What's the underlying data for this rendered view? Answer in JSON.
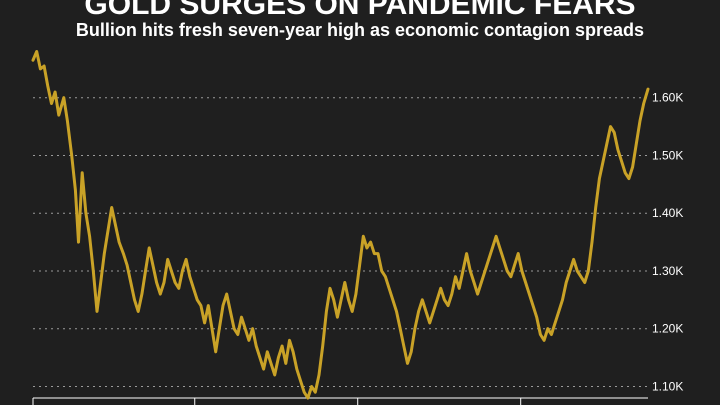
{
  "chart_data": {
    "type": "line",
    "title": "GOLD SURGES ON PANDEMIC FEARS",
    "subtitle": "Bullion hits fresh seven-year high as economic contagion spreads",
    "xlabel": "",
    "ylabel": "",
    "ylim": [
      1080,
      1700
    ],
    "yticks": [
      1100,
      1200,
      1300,
      1400,
      1500,
      1600
    ],
    "ytick_labels": [
      "1.10K",
      "1.20K",
      "1.30K",
      "1.40K",
      "1.50K",
      "1.60K"
    ],
    "grid": "horizontal-dotted",
    "x_range": [
      0,
      100
    ],
    "x_ticks": [
      0,
      26.3,
      52.8,
      79.3
    ],
    "series": [
      {
        "color": "#c9a227",
        "points": [
          [
            0.0,
            1665
          ],
          [
            0.6,
            1680
          ],
          [
            1.2,
            1650
          ],
          [
            1.8,
            1655
          ],
          [
            2.4,
            1620
          ],
          [
            3.0,
            1590
          ],
          [
            3.6,
            1610
          ],
          [
            4.2,
            1570
          ],
          [
            5.0,
            1600
          ],
          [
            5.6,
            1560
          ],
          [
            6.3,
            1500
          ],
          [
            6.9,
            1440
          ],
          [
            7.4,
            1350
          ],
          [
            8.0,
            1470
          ],
          [
            8.6,
            1400
          ],
          [
            9.2,
            1360
          ],
          [
            9.8,
            1300
          ],
          [
            10.4,
            1230
          ],
          [
            11.0,
            1280
          ],
          [
            11.6,
            1330
          ],
          [
            12.2,
            1370
          ],
          [
            12.8,
            1410
          ],
          [
            13.4,
            1380
          ],
          [
            14.0,
            1350
          ],
          [
            14.7,
            1330
          ],
          [
            15.3,
            1310
          ],
          [
            15.9,
            1280
          ],
          [
            16.5,
            1250
          ],
          [
            17.1,
            1230
          ],
          [
            17.7,
            1260
          ],
          [
            18.3,
            1300
          ],
          [
            18.9,
            1340
          ],
          [
            19.5,
            1310
          ],
          [
            20.1,
            1280
          ],
          [
            20.7,
            1260
          ],
          [
            21.3,
            1280
          ],
          [
            21.9,
            1320
          ],
          [
            22.5,
            1300
          ],
          [
            23.1,
            1280
          ],
          [
            23.7,
            1270
          ],
          [
            24.3,
            1300
          ],
          [
            24.9,
            1320
          ],
          [
            25.5,
            1290
          ],
          [
            26.1,
            1270
          ],
          [
            26.7,
            1250
          ],
          [
            27.3,
            1240
          ],
          [
            27.9,
            1210
          ],
          [
            28.5,
            1240
          ],
          [
            29.1,
            1200
          ],
          [
            29.7,
            1160
          ],
          [
            30.3,
            1200
          ],
          [
            30.9,
            1240
          ],
          [
            31.5,
            1260
          ],
          [
            32.1,
            1230
          ],
          [
            32.7,
            1200
          ],
          [
            33.3,
            1190
          ],
          [
            33.9,
            1220
          ],
          [
            34.5,
            1200
          ],
          [
            35.1,
            1180
          ],
          [
            35.7,
            1200
          ],
          [
            36.3,
            1170
          ],
          [
            36.9,
            1150
          ],
          [
            37.5,
            1130
          ],
          [
            38.1,
            1160
          ],
          [
            38.7,
            1140
          ],
          [
            39.3,
            1120
          ],
          [
            39.9,
            1150
          ],
          [
            40.5,
            1170
          ],
          [
            41.1,
            1140
          ],
          [
            41.7,
            1180
          ],
          [
            42.3,
            1160
          ],
          [
            42.9,
            1130
          ],
          [
            43.5,
            1110
          ],
          [
            44.1,
            1090
          ],
          [
            44.7,
            1080
          ],
          [
            45.3,
            1100
          ],
          [
            45.9,
            1090
          ],
          [
            46.5,
            1120
          ],
          [
            47.1,
            1170
          ],
          [
            47.7,
            1230
          ],
          [
            48.3,
            1270
          ],
          [
            48.9,
            1250
          ],
          [
            49.5,
            1220
          ],
          [
            50.1,
            1250
          ],
          [
            50.7,
            1280
          ],
          [
            51.3,
            1250
          ],
          [
            51.9,
            1230
          ],
          [
            52.5,
            1260
          ],
          [
            53.1,
            1310
          ],
          [
            53.7,
            1360
          ],
          [
            54.3,
            1340
          ],
          [
            54.9,
            1350
          ],
          [
            55.5,
            1330
          ],
          [
            56.1,
            1330
          ],
          [
            56.7,
            1300
          ],
          [
            57.3,
            1290
          ],
          [
            57.9,
            1270
          ],
          [
            58.5,
            1250
          ],
          [
            59.1,
            1230
          ],
          [
            59.7,
            1200
          ],
          [
            60.3,
            1170
          ],
          [
            60.9,
            1140
          ],
          [
            61.5,
            1160
          ],
          [
            62.1,
            1200
          ],
          [
            62.7,
            1230
          ],
          [
            63.3,
            1250
          ],
          [
            63.9,
            1230
          ],
          [
            64.5,
            1210
          ],
          [
            65.1,
            1230
          ],
          [
            65.7,
            1250
          ],
          [
            66.3,
            1270
          ],
          [
            66.9,
            1250
          ],
          [
            67.5,
            1240
          ],
          [
            68.1,
            1260
          ],
          [
            68.7,
            1290
          ],
          [
            69.3,
            1270
          ],
          [
            69.9,
            1300
          ],
          [
            70.5,
            1330
          ],
          [
            71.1,
            1300
          ],
          [
            71.7,
            1280
          ],
          [
            72.3,
            1260
          ],
          [
            72.9,
            1280
          ],
          [
            73.5,
            1300
          ],
          [
            74.1,
            1320
          ],
          [
            74.7,
            1340
          ],
          [
            75.3,
            1360
          ],
          [
            75.9,
            1340
          ],
          [
            76.5,
            1320
          ],
          [
            77.1,
            1300
          ],
          [
            77.7,
            1290
          ],
          [
            78.3,
            1310
          ],
          [
            78.9,
            1330
          ],
          [
            79.5,
            1300
          ],
          [
            80.1,
            1280
          ],
          [
            80.7,
            1260
          ],
          [
            81.3,
            1240
          ],
          [
            81.9,
            1220
          ],
          [
            82.5,
            1190
          ],
          [
            83.1,
            1180
          ],
          [
            83.7,
            1200
          ],
          [
            84.3,
            1190
          ],
          [
            84.9,
            1210
          ],
          [
            85.5,
            1230
          ],
          [
            86.1,
            1250
          ],
          [
            86.7,
            1280
          ],
          [
            87.3,
            1300
          ],
          [
            87.9,
            1320
          ],
          [
            88.5,
            1300
          ],
          [
            89.1,
            1290
          ],
          [
            89.7,
            1280
          ],
          [
            90.3,
            1300
          ],
          [
            90.9,
            1350
          ],
          [
            91.5,
            1410
          ],
          [
            92.1,
            1460
          ],
          [
            92.7,
            1490
          ],
          [
            93.3,
            1520
          ],
          [
            93.9,
            1550
          ],
          [
            94.5,
            1540
          ],
          [
            95.1,
            1510
          ],
          [
            95.7,
            1490
          ],
          [
            96.3,
            1470
          ],
          [
            96.9,
            1460
          ],
          [
            97.5,
            1480
          ],
          [
            98.1,
            1520
          ],
          [
            98.7,
            1560
          ],
          [
            99.3,
            1590
          ],
          [
            100.0,
            1615
          ]
        ]
      }
    ]
  }
}
